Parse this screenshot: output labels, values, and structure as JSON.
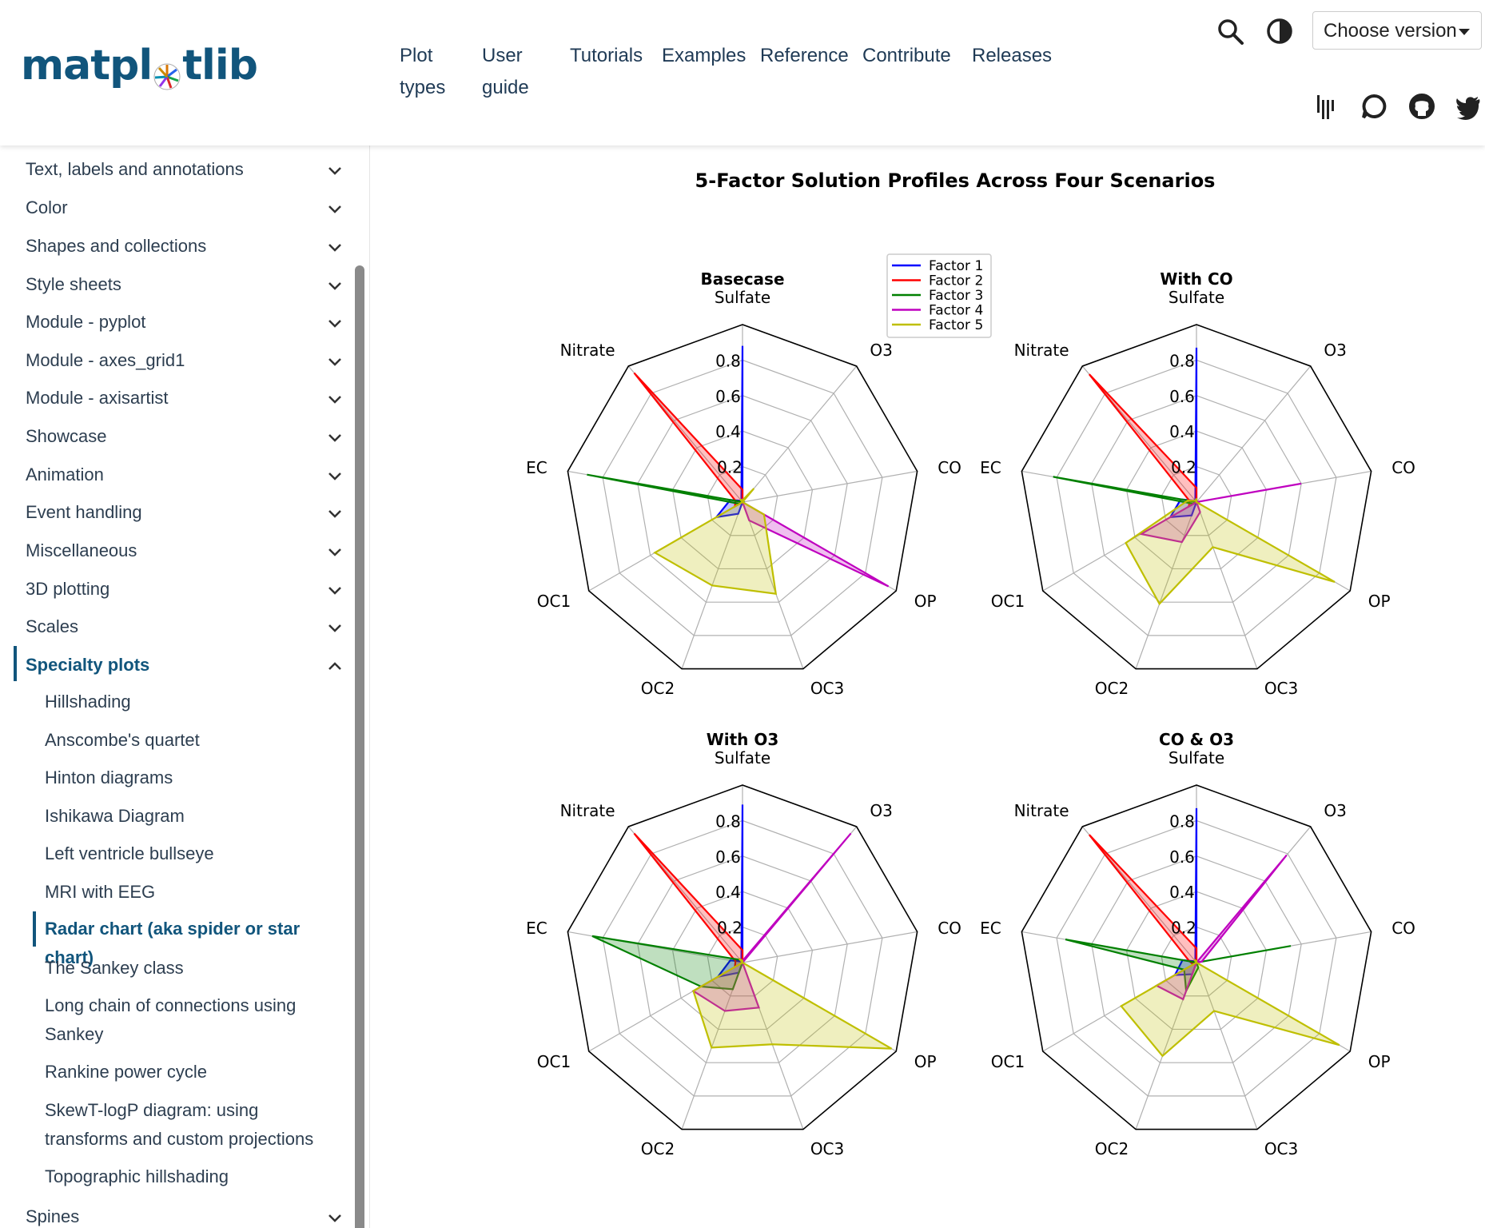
{
  "header": {
    "logo_text_left": "matpl",
    "logo_text_right": "tlib",
    "nav": [
      {
        "label": "Plot types"
      },
      {
        "label": "User guide"
      },
      {
        "label": "Tutorials"
      },
      {
        "label": "Examples"
      },
      {
        "label": "Reference"
      },
      {
        "label": "Contribute"
      },
      {
        "label": "Releases"
      }
    ],
    "version_label": "Choose version"
  },
  "sidebar": {
    "items": [
      {
        "label": "Text, labels and annotations"
      },
      {
        "label": "Color"
      },
      {
        "label": "Shapes and collections"
      },
      {
        "label": "Style sheets"
      },
      {
        "label": "Module - pyplot"
      },
      {
        "label": "Module - axes_grid1"
      },
      {
        "label": "Module - axisartist"
      },
      {
        "label": "Showcase"
      },
      {
        "label": "Animation"
      },
      {
        "label": "Event handling"
      },
      {
        "label": "Miscellaneous"
      },
      {
        "label": "3D plotting"
      },
      {
        "label": "Scales"
      },
      {
        "label": "Specialty plots"
      }
    ],
    "subitems": [
      {
        "label": "Hillshading"
      },
      {
        "label": "Anscombe's quartet"
      },
      {
        "label": "Hinton diagrams"
      },
      {
        "label": "Ishikawa Diagram"
      },
      {
        "label": "Left ventricle bullseye"
      },
      {
        "label": "MRI with EEG"
      },
      {
        "label": "Radar chart (aka spider or star chart)"
      },
      {
        "label": "The Sankey class"
      },
      {
        "label": "Long chain of connections using Sankey"
      },
      {
        "label": "Rankine power cycle"
      },
      {
        "label": "SkewT-logP diagram: using transforms and custom projections"
      },
      {
        "label": "Topographic hillshading"
      }
    ],
    "after": [
      {
        "label": "Spines"
      }
    ]
  },
  "chart_data": {
    "type": "radar",
    "title": "5-Factor Solution Profiles Across Four Scenarios",
    "spoke_labels": [
      "Sulfate",
      "Nitrate",
      "EC",
      "OC1",
      "OC2",
      "OC3",
      "OP",
      "CO",
      "O3"
    ],
    "rgrid_labels": [
      "0.2",
      "0.4",
      "0.6",
      "0.8"
    ],
    "rgrids": [
      0.2,
      0.4,
      0.6,
      0.8
    ],
    "rmax": 1.0,
    "legend": [
      "Factor 1",
      "Factor 2",
      "Factor 3",
      "Factor 4",
      "Factor 5"
    ],
    "colors": [
      "#0000ff",
      "#ff0000",
      "#008000",
      "#bf00bf",
      "#bfbf00"
    ],
    "panels": [
      {
        "title": "Basecase",
        "series": [
          [
            0.88,
            0.01,
            0.07,
            0.17,
            0.07,
            0.0,
            0.0,
            0.0,
            0.0
          ],
          [
            0.07,
            0.95,
            0.04,
            0.05,
            0.0,
            0.0,
            0.0,
            0.0,
            0.0
          ],
          [
            0.0,
            0.0,
            0.89,
            0.02,
            0.0,
            0.0,
            0.0,
            0.0,
            0.0
          ],
          [
            0.02,
            0.0,
            0.0,
            0.0,
            0.0,
            0.11,
            0.95,
            0.0,
            0.0
          ],
          [
            0.01,
            0.02,
            0.0,
            0.57,
            0.5,
            0.55,
            0.14,
            0.0,
            0.1
          ]
        ]
      },
      {
        "title": "With CO",
        "series": [
          [
            0.87,
            0.01,
            0.09,
            0.17,
            0.08,
            0.0,
            0.0,
            0.0,
            0.0
          ],
          [
            0.08,
            0.94,
            0.04,
            0.05,
            0.0,
            0.0,
            0.03,
            0.0,
            0.0
          ],
          [
            0.01,
            0.0,
            0.82,
            0.02,
            0.0,
            0.0,
            0.02,
            0.0,
            0.0
          ],
          [
            0.0,
            0.01,
            0.0,
            0.36,
            0.24,
            0.06,
            0.0,
            0.6,
            0.0
          ],
          [
            0.02,
            0.01,
            0.05,
            0.46,
            0.61,
            0.27,
            0.9,
            0.0,
            0.0
          ]
        ]
      },
      {
        "title": "With O3",
        "series": [
          [
            0.89,
            0.01,
            0.07,
            0.16,
            0.06,
            0.0,
            0.0,
            0.0,
            0.0
          ],
          [
            0.07,
            0.95,
            0.04,
            0.05,
            0.0,
            0.0,
            0.0,
            0.0,
            0.0
          ],
          [
            0.01,
            0.02,
            0.86,
            0.27,
            0.16,
            0.0,
            0.0,
            0.0,
            0.0
          ],
          [
            0.01,
            0.03,
            0.0,
            0.32,
            0.29,
            0.27,
            0.0,
            0.0,
            0.95
          ],
          [
            0.01,
            0.03,
            0.0,
            0.32,
            0.51,
            0.49,
            0.97,
            0.0,
            0.0
          ]
        ]
      },
      {
        "title": "CO & O3",
        "series": [
          [
            0.87,
            0.01,
            0.08,
            0.14,
            0.07,
            0.0,
            0.0,
            0.0,
            0.0
          ],
          [
            0.08,
            0.94,
            0.04,
            0.02,
            0.0,
            0.01,
            0.0,
            0.0,
            0.0
          ],
          [
            0.01,
            0.0,
            0.75,
            0.08,
            0.17,
            0.03,
            0.0,
            0.54,
            0.0
          ],
          [
            0.0,
            0.01,
            0.0,
            0.26,
            0.22,
            0.0,
            0.0,
            0.03,
            0.79
          ],
          [
            0.01,
            0.02,
            0.0,
            0.49,
            0.56,
            0.29,
            0.93,
            0.0,
            0.0
          ]
        ]
      }
    ]
  }
}
